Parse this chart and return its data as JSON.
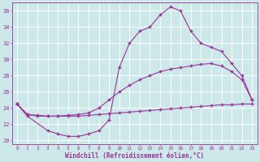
{
  "xlabel": "Windchill (Refroidissement éolien,°C)",
  "bg_color": "#cce8e8",
  "grid_color": "#ffffff",
  "line_color": "#993399",
  "xlim": [
    -0.5,
    23.5
  ],
  "ylim": [
    19.5,
    37.0
  ],
  "yticks": [
    20,
    22,
    24,
    26,
    28,
    30,
    32,
    34,
    36
  ],
  "xticks": [
    0,
    1,
    2,
    3,
    4,
    5,
    6,
    7,
    8,
    9,
    10,
    11,
    12,
    13,
    14,
    15,
    16,
    17,
    18,
    19,
    20,
    21,
    22,
    23
  ],
  "line1_x": [
    0,
    1,
    3,
    4,
    5,
    6,
    7,
    8,
    9,
    10,
    11,
    12,
    13,
    14,
    15,
    16,
    17,
    18,
    19,
    20,
    21,
    22,
    23
  ],
  "line1_y": [
    24.5,
    23.0,
    21.2,
    20.8,
    20.5,
    20.5,
    20.8,
    21.2,
    22.5,
    29.0,
    32.0,
    33.5,
    34.0,
    35.5,
    36.5,
    36.0,
    33.5,
    32.0,
    31.5,
    31.0,
    29.5,
    28.0,
    25.0
  ],
  "line2_x": [
    0,
    1,
    2,
    3,
    4,
    5,
    6,
    7,
    8,
    9,
    10,
    11,
    12,
    13,
    14,
    15,
    16,
    17,
    18,
    19,
    20,
    21,
    22,
    23
  ],
  "line2_y": [
    24.5,
    23.2,
    23.1,
    23.0,
    23.0,
    23.1,
    23.2,
    23.4,
    24.0,
    25.0,
    26.0,
    26.8,
    27.5,
    28.0,
    28.5,
    28.8,
    29.0,
    29.2,
    29.4,
    29.5,
    29.2,
    28.5,
    27.5,
    25.0
  ],
  "line3_x": [
    0,
    1,
    2,
    3,
    4,
    5,
    6,
    7,
    8,
    9,
    10,
    11,
    12,
    13,
    14,
    15,
    16,
    17,
    18,
    19,
    20,
    21,
    22,
    23
  ],
  "line3_y": [
    24.5,
    23.2,
    23.0,
    23.0,
    23.0,
    23.0,
    23.0,
    23.1,
    23.2,
    23.3,
    23.4,
    23.5,
    23.6,
    23.7,
    23.8,
    23.9,
    24.0,
    24.1,
    24.2,
    24.3,
    24.4,
    24.4,
    24.5,
    24.5
  ]
}
